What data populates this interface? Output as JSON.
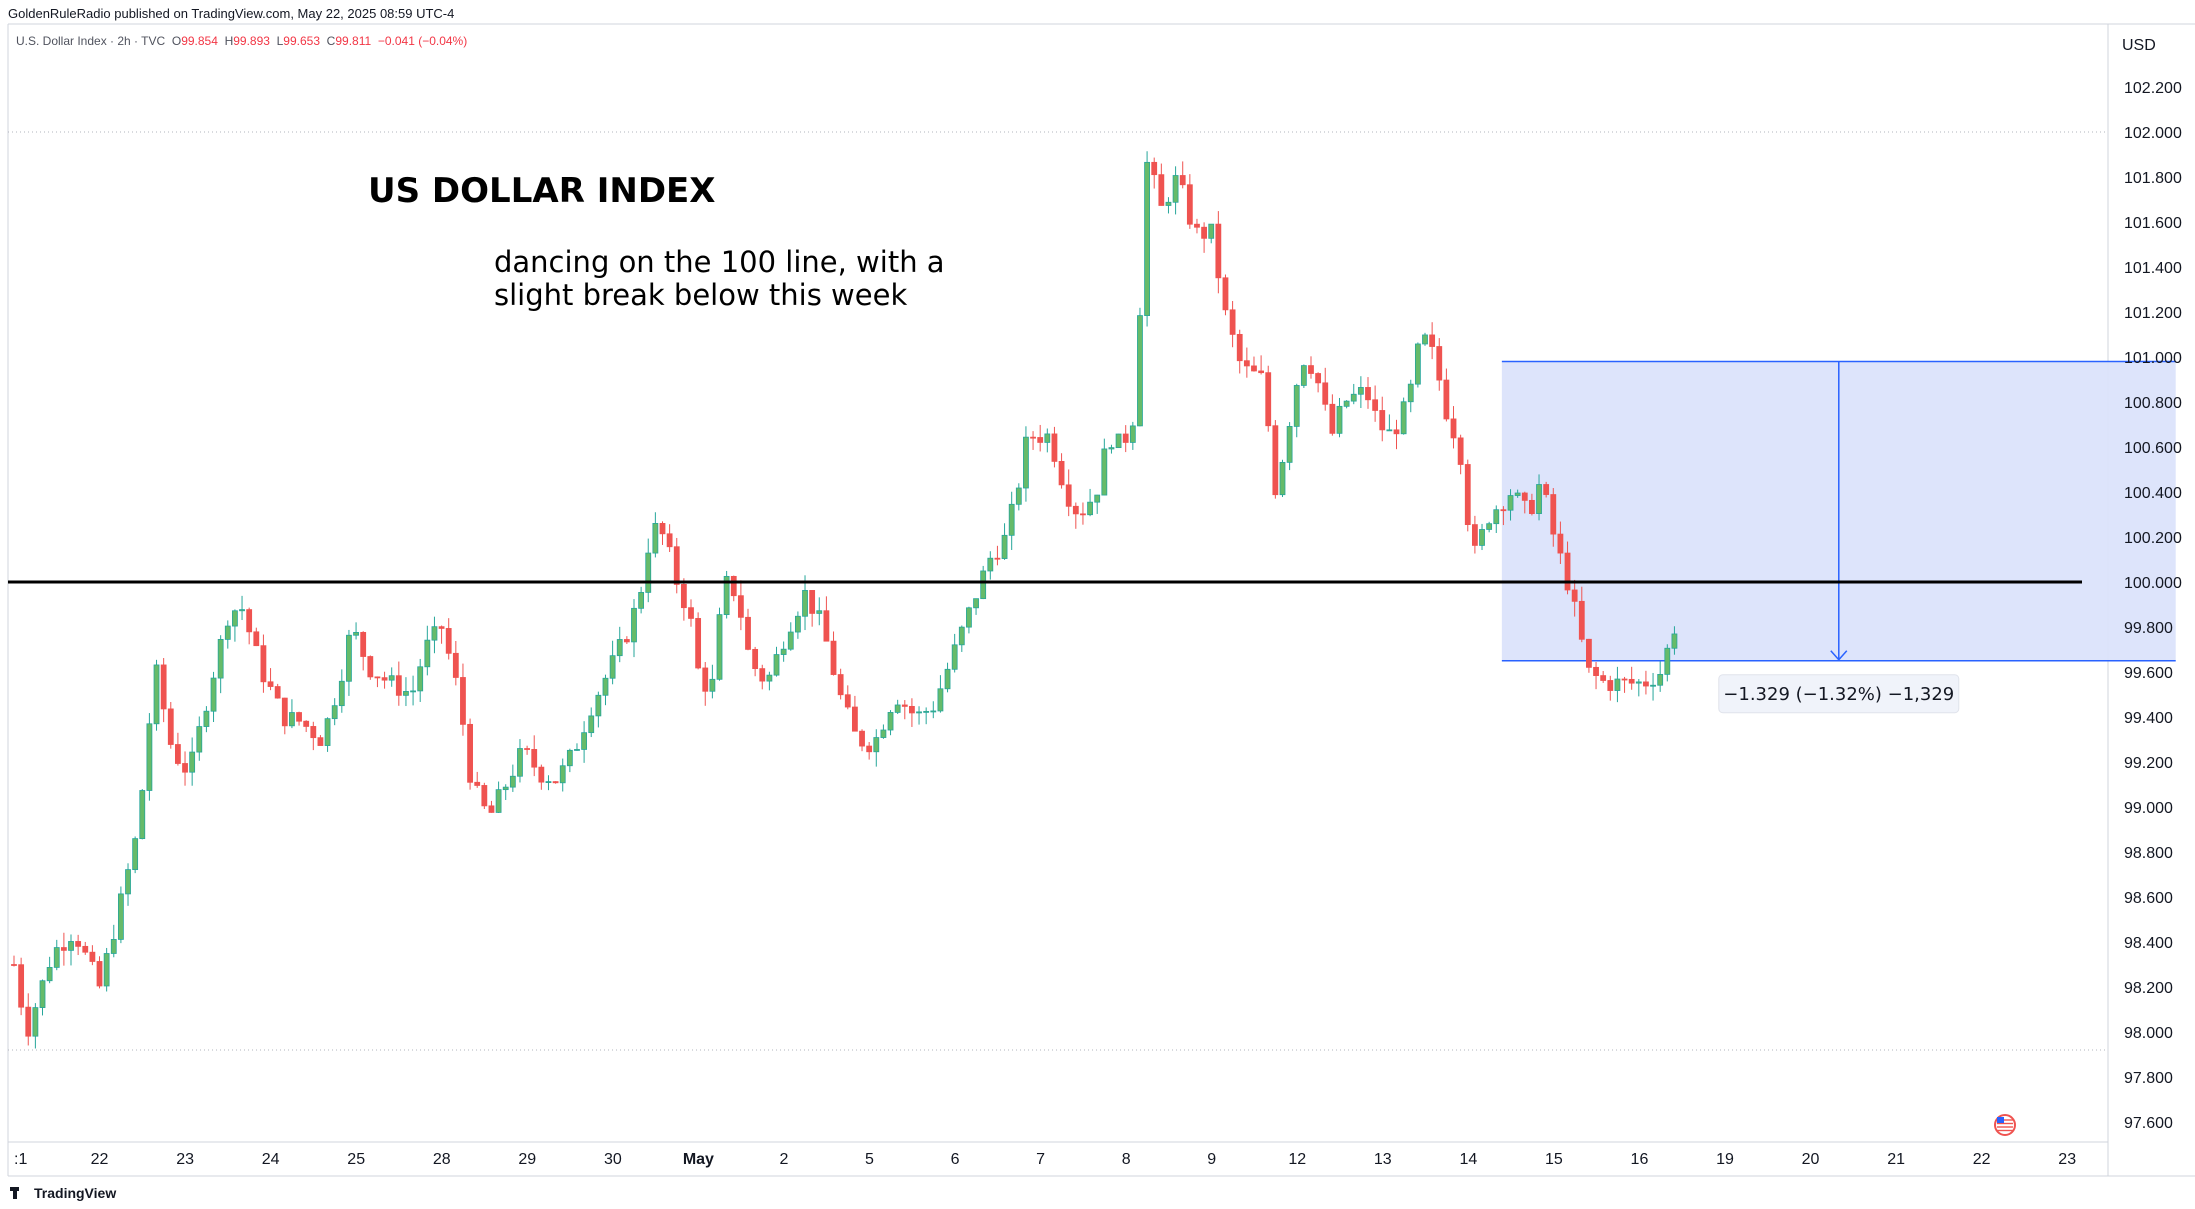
{
  "header": {
    "publisher": "GoldenRuleRadio published on TradingView.com, May 22, 2025 08:59 UTC-4",
    "symbol": "U.S. Dollar Index · 2h · TVC",
    "ohlc": {
      "o_label": "O",
      "o": "99.854",
      "h_label": "H",
      "h": "99.893",
      "l_label": "L",
      "l": "99.653",
      "c_label": "C",
      "c": "99.811",
      "change": "−0.041 (−0.04%)"
    }
  },
  "footer": {
    "brand": "TradingView"
  },
  "colors": {
    "up": "#26a69a",
    "up_fill": "#66bb6a",
    "down": "#ef5350",
    "level_line": "#000000",
    "measure_fill": "#dbe3fb",
    "measure_line": "#2962ff"
  },
  "chart_data": {
    "type": "candlestick",
    "currency": "USD",
    "title": "US DOLLAR INDEX",
    "annotation": [
      "dancing on the 100 line, with a",
      "slight break below this week"
    ],
    "ylim": [
      97.5,
      102.35
    ],
    "y_ticks": [
      "102.200",
      "102.000",
      "101.800",
      "101.600",
      "101.400",
      "101.200",
      "101.000",
      "100.800",
      "100.600",
      "100.400",
      "100.200",
      "100.000",
      "99.800",
      "99.600",
      "99.400",
      "99.200",
      "99.000",
      "98.800",
      "98.600",
      "98.400",
      "98.200",
      "98.000",
      "97.800",
      "97.600"
    ],
    "x_labels": [
      ":1",
      "22",
      "23",
      "24",
      "25",
      "28",
      "29",
      "30",
      "May",
      "2",
      "5",
      "6",
      "7",
      "8",
      "9",
      "12",
      "13",
      "14",
      "15",
      "16",
      "19",
      "20",
      "21",
      "22",
      "23"
    ],
    "horizontal_line": 100.0,
    "dotted_levels": [
      102.0,
      97.92
    ],
    "measure": {
      "label": "−1.329 (−1.32%) −1,329",
      "top": 100.98,
      "bottom": 99.65,
      "from_day": 14.75,
      "to_day": 21.75
    },
    "anchor_points": [
      [
        0.0,
        98.3
      ],
      [
        0.15,
        98.0
      ],
      [
        0.45,
        98.35
      ],
      [
        0.7,
        98.45
      ],
      [
        1.0,
        98.2
      ],
      [
        1.2,
        98.5
      ],
      [
        1.45,
        98.9
      ],
      [
        1.65,
        99.62
      ],
      [
        1.85,
        99.25
      ],
      [
        2.05,
        99.15
      ],
      [
        2.3,
        99.55
      ],
      [
        2.5,
        99.85
      ],
      [
        2.65,
        99.9
      ],
      [
        2.9,
        99.6
      ],
      [
        3.15,
        99.4
      ],
      [
        3.35,
        99.38
      ],
      [
        3.6,
        99.3
      ],
      [
        3.8,
        99.55
      ],
      [
        3.95,
        99.8
      ],
      [
        4.15,
        99.62
      ],
      [
        4.4,
        99.55
      ],
      [
        4.65,
        99.5
      ],
      [
        4.8,
        99.7
      ],
      [
        5.0,
        99.8
      ],
      [
        5.2,
        99.5
      ],
      [
        5.35,
        99.1
      ],
      [
        5.55,
        98.95
      ],
      [
        5.75,
        99.1
      ],
      [
        5.95,
        99.25
      ],
      [
        6.15,
        99.15
      ],
      [
        6.35,
        99.12
      ],
      [
        6.55,
        99.25
      ],
      [
        6.75,
        99.45
      ],
      [
        6.95,
        99.6
      ],
      [
        7.2,
        99.8
      ],
      [
        7.35,
        100.0
      ],
      [
        7.45,
        100.25
      ],
      [
        7.6,
        100.2
      ],
      [
        7.75,
        100.0
      ],
      [
        7.9,
        99.85
      ],
      [
        8.0,
        99.6
      ],
      [
        8.15,
        99.5
      ],
      [
        8.3,
        100.0
      ],
      [
        8.45,
        99.95
      ],
      [
        8.6,
        99.65
      ],
      [
        8.8,
        99.55
      ],
      [
        9.05,
        99.8
      ],
      [
        9.25,
        99.95
      ],
      [
        9.45,
        99.8
      ],
      [
        9.65,
        99.5
      ],
      [
        9.85,
        99.3
      ],
      [
        10.05,
        99.28
      ],
      [
        10.3,
        99.5
      ],
      [
        10.55,
        99.4
      ],
      [
        10.75,
        99.45
      ],
      [
        11.0,
        99.7
      ],
      [
        11.2,
        99.9
      ],
      [
        11.4,
        100.1
      ],
      [
        11.6,
        100.2
      ],
      [
        11.75,
        100.45
      ],
      [
        11.85,
        100.65
      ],
      [
        12.1,
        100.65
      ],
      [
        12.3,
        100.4
      ],
      [
        12.45,
        100.3
      ],
      [
        12.65,
        100.4
      ],
      [
        12.8,
        100.65
      ],
      [
        12.95,
        100.6
      ],
      [
        13.1,
        100.75
      ],
      [
        13.25,
        101.9
      ],
      [
        13.4,
        101.65
      ],
      [
        13.6,
        101.8
      ],
      [
        13.8,
        101.55
      ],
      [
        14.0,
        101.55
      ],
      [
        14.15,
        101.2
      ],
      [
        14.35,
        100.95
      ],
      [
        14.6,
        100.9
      ],
      [
        14.75,
        100.4
      ],
      [
        14.9,
        100.7
      ],
      [
        15.05,
        101.0
      ],
      [
        15.2,
        100.95
      ],
      [
        15.4,
        100.65
      ],
      [
        15.55,
        100.8
      ],
      [
        15.8,
        100.85
      ],
      [
        15.95,
        100.7
      ],
      [
        16.1,
        100.65
      ],
      [
        16.3,
        100.8
      ],
      [
        16.45,
        101.1
      ],
      [
        16.6,
        101.0
      ],
      [
        16.75,
        100.75
      ],
      [
        16.9,
        100.6
      ],
      [
        17.05,
        100.1
      ],
      [
        17.25,
        100.3
      ],
      [
        17.5,
        100.4
      ],
      [
        17.7,
        100.3
      ],
      [
        17.85,
        100.45
      ],
      [
        18.0,
        100.2
      ],
      [
        18.2,
        99.95
      ],
      [
        18.4,
        99.6
      ],
      [
        18.6,
        99.55
      ],
      [
        18.85,
        99.55
      ],
      [
        19.05,
        99.55
      ],
      [
        19.25,
        99.6
      ],
      [
        19.45,
        99.85
      ]
    ],
    "start_day": 0,
    "end_day": 19.45
  }
}
